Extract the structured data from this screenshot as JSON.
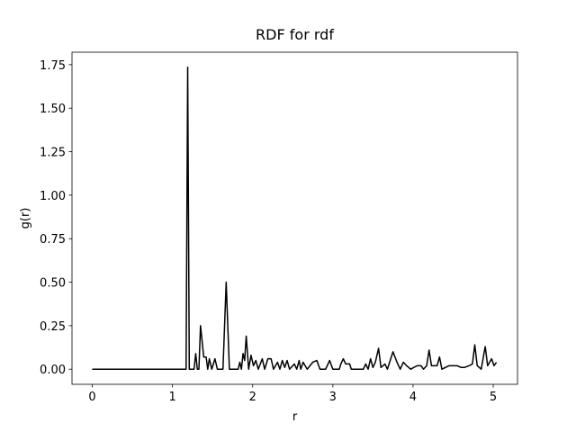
{
  "chart_data": {
    "type": "line",
    "title": "RDF for rdf",
    "x_label": "r",
    "y_label": "g(r)",
    "x": [
      0,
      1.15,
      1.17,
      1.19,
      1.21,
      1.27,
      1.29,
      1.31,
      1.33,
      1.35,
      1.39,
      1.42,
      1.44,
      1.46,
      1.49,
      1.53,
      1.56,
      1.63,
      1.67,
      1.71,
      1.82,
      1.84,
      1.86,
      1.88,
      1.9,
      1.92,
      1.95,
      1.98,
      2.01,
      2.04,
      2.07,
      2.12,
      2.15,
      2.19,
      2.23,
      2.26,
      2.31,
      2.34,
      2.37,
      2.4,
      2.43,
      2.46,
      2.52,
      2.55,
      2.58,
      2.6,
      2.63,
      2.68,
      2.75,
      2.8,
      2.84,
      2.91,
      2.96,
      3.0,
      3.08,
      3.1,
      3.13,
      3.16,
      3.21,
      3.23,
      3.38,
      3.41,
      3.44,
      3.47,
      3.5,
      3.53,
      3.57,
      3.6,
      3.65,
      3.68,
      3.75,
      3.8,
      3.84,
      3.88,
      3.92,
      3.97,
      4.05,
      4.1,
      4.13,
      4.17,
      4.2,
      4.23,
      4.3,
      4.33,
      4.36,
      4.45,
      4.55,
      4.6,
      4.64,
      4.7,
      4.74,
      4.77,
      4.8,
      4.85,
      4.9,
      4.93,
      4.98,
      5.01,
      5.04
    ],
    "series": [
      {
        "name": "g(r)",
        "color": "#000000",
        "values": [
          0,
          0,
          0,
          1.735,
          0,
          0,
          0.09,
          0,
          0,
          0.25,
          0.07,
          0.07,
          0,
          0.06,
          0,
          0.06,
          0,
          0,
          0.5,
          0,
          0,
          0.04,
          0,
          0.09,
          0.05,
          0.19,
          0,
          0.08,
          0.02,
          0.05,
          0,
          0.06,
          0,
          0.06,
          0.06,
          0,
          0.04,
          0,
          0.05,
          0.01,
          0.05,
          0,
          0.03,
          0,
          0.05,
          0,
          0.04,
          0,
          0.04,
          0.05,
          0,
          0,
          0.05,
          0,
          0,
          0.03,
          0.06,
          0.03,
          0.03,
          0,
          0,
          0.03,
          0,
          0.06,
          0.01,
          0.04,
          0.12,
          0.01,
          0.03,
          0,
          0.1,
          0.04,
          0,
          0.04,
          0.02,
          0,
          0.02,
          0.02,
          0,
          0.02,
          0.11,
          0.02,
          0.02,
          0.07,
          0,
          0.02,
          0.02,
          0.01,
          0.01,
          0.02,
          0.03,
          0.14,
          0.02,
          0,
          0.13,
          0.02,
          0.06,
          0.02,
          0.04
        ]
      }
    ],
    "xlim": [
      -0.2525,
      5.3025
    ],
    "ylim": [
      -0.0868,
      1.8218
    ],
    "xticks": [
      0,
      1,
      2,
      3,
      4,
      5
    ],
    "yticks": [
      {
        "value": 0,
        "label": "0.00"
      },
      {
        "value": 0.25,
        "label": "0.25"
      },
      {
        "value": 0.5,
        "label": "0.50"
      },
      {
        "value": 0.75,
        "label": "0.75"
      },
      {
        "value": 1.0,
        "label": "1.00"
      },
      {
        "value": 1.25,
        "label": "1.25"
      },
      {
        "value": 1.5,
        "label": "1.50"
      },
      {
        "value": 1.75,
        "label": "1.75"
      }
    ],
    "grid": false
  }
}
